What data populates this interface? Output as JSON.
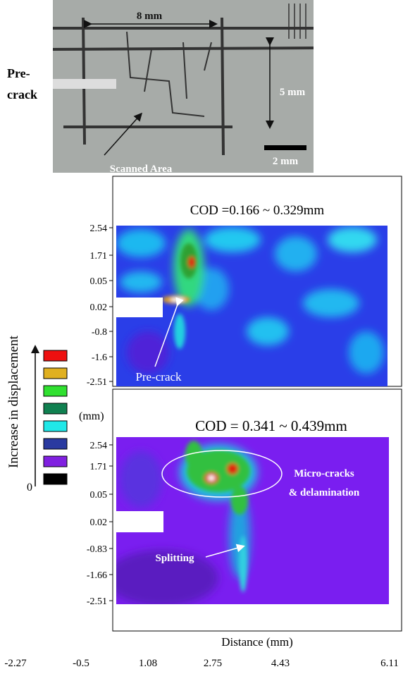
{
  "photo": {
    "labels": {
      "width": "8 mm",
      "precrack_line1": "Pre-",
      "precrack_line2": "crack",
      "height": "5 mm",
      "scale": "2 mm",
      "scanned": "Scanned Area"
    }
  },
  "legend": {
    "title": "Increase in displacement",
    "unit": "(mm)",
    "zero": "0"
  },
  "panels": [
    {
      "title": "COD =0.166 ~ 0.329mm",
      "yticks": [
        "2.54",
        "1.71",
        "0.05",
        "0.02",
        "-0.8",
        "-1.6",
        "-2.51"
      ],
      "annotations": {
        "precrack": "Pre-crack"
      }
    },
    {
      "title": "COD = 0.341 ~ 0.439mm",
      "yticks": [
        "2.54",
        "1.71",
        "0.05",
        "0.02",
        "-0.83",
        "-1.66",
        "-2.51"
      ],
      "annotations": {
        "micro1": "Micro-cracks",
        "micro2": "& delamination",
        "splitting": "Splitting"
      }
    }
  ],
  "x_axis": {
    "label": "Distance (mm)",
    "ticks": [
      "-2.27",
      "-0.5",
      "1.08",
      "2.75",
      "4.43",
      "6.11"
    ]
  }
}
